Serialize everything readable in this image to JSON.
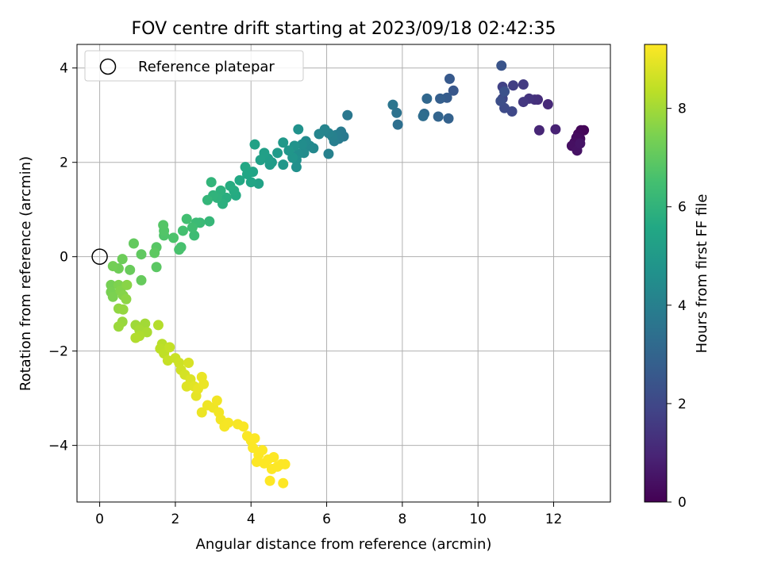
{
  "chart_data": {
    "type": "scatter",
    "title": "FOV centre drift starting at 2023/09/18 02:42:35",
    "xlabel": "Angular distance from reference (arcmin)",
    "ylabel": "Rotation from reference (arcmin)",
    "xlim": [
      -0.6,
      13.5
    ],
    "ylim": [
      -5.2,
      4.5
    ],
    "xticks": [
      0,
      2,
      4,
      6,
      8,
      10,
      12
    ],
    "yticks": [
      -4,
      -2,
      0,
      2,
      4
    ],
    "grid": true,
    "legend": {
      "location": "upper-left",
      "entries": [
        "Reference platepar"
      ]
    },
    "reference_point": {
      "x": 0,
      "y": 0,
      "label": "Reference platepar",
      "marker": "open-circle"
    },
    "colorbar": {
      "label": "Hours from first FF file",
      "range": [
        0,
        9.3
      ],
      "ticks": [
        0,
        2,
        4,
        6,
        8
      ],
      "colormap": "viridis"
    },
    "points": [
      [
        12.8,
        2.68,
        0.1
      ],
      [
        12.72,
        2.68,
        0.15
      ],
      [
        12.65,
        2.6,
        0.2
      ],
      [
        12.7,
        2.5,
        0.25
      ],
      [
        12.6,
        2.52,
        0.3
      ],
      [
        12.55,
        2.42,
        0.35
      ],
      [
        12.48,
        2.35,
        0.4
      ],
      [
        12.62,
        2.25,
        0.45
      ],
      [
        12.7,
        2.4,
        0.5
      ],
      [
        12.05,
        2.7,
        0.9
      ],
      [
        11.62,
        2.68,
        1.0
      ],
      [
        11.85,
        3.23,
        1.1
      ],
      [
        11.58,
        3.33,
        1.2
      ],
      [
        11.5,
        3.33,
        1.3
      ],
      [
        11.35,
        3.35,
        1.4
      ],
      [
        11.2,
        3.28,
        1.5
      ],
      [
        11.2,
        3.65,
        1.6
      ],
      [
        10.93,
        3.63,
        1.7
      ],
      [
        10.65,
        3.6,
        1.8
      ],
      [
        10.65,
        3.35,
        1.9
      ],
      [
        10.9,
        3.08,
        2.0
      ],
      [
        10.7,
        3.15,
        2.1
      ],
      [
        10.6,
        3.3,
        2.2
      ],
      [
        10.7,
        3.5,
        2.3
      ],
      [
        10.62,
        4.05,
        2.4
      ],
      [
        9.35,
        3.52,
        2.5
      ],
      [
        9.25,
        3.77,
        2.6
      ],
      [
        9.18,
        3.37,
        2.7
      ],
      [
        9.0,
        3.35,
        2.8
      ],
      [
        9.22,
        2.93,
        2.9
      ],
      [
        8.95,
        2.97,
        3.0
      ],
      [
        8.65,
        3.35,
        3.1
      ],
      [
        8.58,
        3.03,
        3.2
      ],
      [
        8.55,
        2.98,
        3.3
      ],
      [
        7.88,
        2.8,
        3.4
      ],
      [
        7.85,
        3.05,
        3.5
      ],
      [
        7.75,
        3.22,
        3.6
      ],
      [
        6.55,
        3.0,
        3.7
      ],
      [
        6.45,
        2.55,
        3.75
      ],
      [
        6.38,
        2.65,
        3.8
      ],
      [
        6.32,
        2.5,
        3.85
      ],
      [
        6.25,
        2.58,
        3.9
      ],
      [
        6.2,
        2.45,
        3.95
      ],
      [
        6.15,
        2.55,
        4.0
      ],
      [
        6.05,
        2.18,
        4.05
      ],
      [
        6.05,
        2.62,
        4.1
      ],
      [
        5.95,
        2.7,
        4.15
      ],
      [
        5.8,
        2.6,
        4.2
      ],
      [
        5.65,
        2.3,
        4.3
      ],
      [
        5.55,
        2.35,
        4.35
      ],
      [
        5.45,
        2.45,
        4.4
      ],
      [
        5.4,
        2.2,
        4.45
      ],
      [
        5.35,
        2.38,
        4.5
      ],
      [
        5.25,
        2.18,
        4.55
      ],
      [
        5.2,
        2.05,
        4.6
      ],
      [
        5.2,
        1.9,
        4.65
      ],
      [
        5.25,
        2.7,
        4.7
      ],
      [
        5.15,
        2.35,
        4.75
      ],
      [
        5.1,
        2.1,
        4.8
      ],
      [
        5.0,
        2.25,
        4.85
      ],
      [
        4.85,
        1.95,
        4.9
      ],
      [
        4.85,
        2.42,
        4.95
      ],
      [
        4.7,
        2.2,
        5.0
      ],
      [
        4.55,
        2.0,
        5.05
      ],
      [
        4.5,
        1.95,
        5.1
      ],
      [
        4.45,
        2.08,
        5.15
      ],
      [
        4.35,
        2.2,
        5.2
      ],
      [
        4.25,
        2.05,
        5.25
      ],
      [
        4.1,
        2.38,
        5.3
      ],
      [
        4.2,
        1.55,
        5.35
      ],
      [
        4.05,
        1.8,
        5.4
      ],
      [
        4.0,
        1.58,
        5.45
      ],
      [
        3.9,
        1.75,
        5.5
      ],
      [
        3.85,
        1.9,
        5.55
      ],
      [
        3.7,
        1.62,
        5.6
      ],
      [
        3.6,
        1.3,
        5.65
      ],
      [
        3.55,
        1.4,
        5.7
      ],
      [
        3.45,
        1.5,
        5.75
      ],
      [
        3.35,
        1.25,
        5.8
      ],
      [
        3.25,
        1.12,
        5.85
      ],
      [
        3.2,
        1.4,
        5.9
      ],
      [
        3.1,
        1.25,
        5.95
      ],
      [
        3.0,
        1.3,
        6.0
      ],
      [
        2.95,
        1.58,
        6.05
      ],
      [
        2.85,
        1.2,
        6.1
      ],
      [
        2.9,
        0.75,
        6.15
      ],
      [
        2.65,
        0.72,
        6.25
      ],
      [
        2.55,
        0.72,
        6.3
      ],
      [
        2.5,
        0.45,
        6.35
      ],
      [
        2.45,
        0.62,
        6.4
      ],
      [
        2.3,
        0.8,
        6.45
      ],
      [
        2.2,
        0.55,
        6.5
      ],
      [
        2.15,
        0.2,
        6.55
      ],
      [
        2.1,
        0.15,
        6.6
      ],
      [
        1.95,
        0.4,
        6.65
      ],
      [
        1.7,
        0.45,
        6.7
      ],
      [
        1.7,
        0.55,
        6.75
      ],
      [
        1.68,
        0.67,
        6.8
      ],
      [
        1.5,
        0.2,
        6.85
      ],
      [
        1.5,
        -0.22,
        6.9
      ],
      [
        1.45,
        0.08,
        6.95
      ],
      [
        1.1,
        0.05,
        7.0
      ],
      [
        0.9,
        0.28,
        7.05
      ],
      [
        1.1,
        -0.5,
        7.1
      ],
      [
        0.8,
        -0.28,
        7.15
      ],
      [
        0.6,
        -0.05,
        7.2
      ],
      [
        0.5,
        -0.25,
        7.25
      ],
      [
        0.35,
        -0.2,
        7.3
      ],
      [
        0.3,
        -0.6,
        7.35
      ],
      [
        0.3,
        -0.75,
        7.4
      ],
      [
        0.35,
        -0.85,
        7.45
      ],
      [
        0.5,
        -0.6,
        7.5
      ],
      [
        0.55,
        -0.72,
        7.55
      ],
      [
        0.62,
        -0.82,
        7.6
      ],
      [
        0.72,
        -0.6,
        7.65
      ],
      [
        0.7,
        -0.9,
        7.7
      ],
      [
        0.5,
        -1.1,
        7.75
      ],
      [
        0.62,
        -1.12,
        7.8
      ],
      [
        0.6,
        -1.38,
        7.85
      ],
      [
        0.5,
        -1.48,
        7.9
      ],
      [
        0.95,
        -1.45,
        7.95
      ],
      [
        1.2,
        -1.42,
        8.0
      ],
      [
        1.05,
        -1.55,
        8.05
      ],
      [
        1.25,
        -1.6,
        8.1
      ],
      [
        1.05,
        -1.68,
        8.15
      ],
      [
        0.95,
        -1.72,
        8.2
      ],
      [
        1.55,
        -1.45,
        8.25
      ],
      [
        1.65,
        -1.85,
        8.3
      ],
      [
        1.6,
        -1.95,
        8.35
      ],
      [
        1.7,
        -2.05,
        8.4
      ],
      [
        1.85,
        -1.92,
        8.45
      ],
      [
        1.8,
        -2.2,
        8.5
      ],
      [
        2.0,
        -2.15,
        8.55
      ],
      [
        2.1,
        -2.25,
        8.6
      ],
      [
        2.15,
        -2.4,
        8.65
      ],
      [
        2.25,
        -2.5,
        8.7
      ],
      [
        2.35,
        -2.25,
        8.75
      ],
      [
        2.4,
        -2.6,
        8.8
      ],
      [
        2.3,
        -2.75,
        8.85
      ],
      [
        2.5,
        -2.75,
        8.9
      ],
      [
        2.55,
        -2.95,
        8.95
      ],
      [
        2.6,
        -2.8,
        9.0
      ],
      [
        2.7,
        -2.55,
        9.02
      ],
      [
        2.75,
        -2.7,
        9.04
      ],
      [
        2.7,
        -3.3,
        9.06
      ],
      [
        2.85,
        -3.15,
        9.08
      ],
      [
        3.0,
        -3.2,
        9.1
      ],
      [
        3.1,
        -3.05,
        9.12
      ],
      [
        3.15,
        -3.3,
        9.14
      ],
      [
        3.2,
        -3.45,
        9.16
      ],
      [
        3.3,
        -3.6,
        9.18
      ],
      [
        3.4,
        -3.52,
        9.2
      ],
      [
        3.65,
        -3.55,
        9.22
      ],
      [
        3.8,
        -3.6,
        9.24
      ],
      [
        3.9,
        -3.8,
        9.25
      ],
      [
        4.0,
        -3.9,
        9.26
      ],
      [
        4.05,
        -4.05,
        9.27
      ],
      [
        4.1,
        -3.85,
        9.28
      ],
      [
        4.2,
        -4.2,
        9.28
      ],
      [
        4.15,
        -4.35,
        9.29
      ],
      [
        4.3,
        -4.1,
        9.29
      ],
      [
        4.35,
        -4.38,
        9.3
      ],
      [
        4.45,
        -4.3,
        9.3
      ],
      [
        4.55,
        -4.5,
        9.3
      ],
      [
        4.6,
        -4.25,
        9.3
      ],
      [
        4.7,
        -4.45,
        9.3
      ],
      [
        4.5,
        -4.75,
        9.3
      ],
      [
        4.8,
        -4.4,
        9.3
      ],
      [
        4.85,
        -4.8,
        9.3
      ],
      [
        4.9,
        -4.4,
        9.3
      ]
    ]
  }
}
